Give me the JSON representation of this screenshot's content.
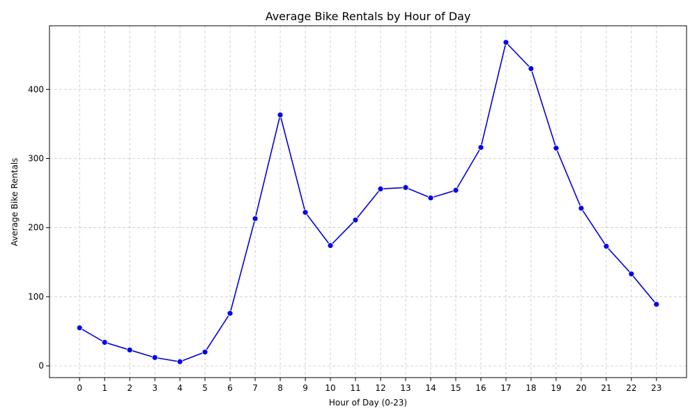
{
  "chart_data": {
    "type": "line",
    "title": "Average Bike Rentals by Hour of Day",
    "xlabel": "Hour of Day (0-23)",
    "ylabel": "Average Bike Rentals",
    "x": [
      0,
      1,
      2,
      3,
      4,
      5,
      6,
      7,
      8,
      9,
      10,
      11,
      12,
      13,
      14,
      15,
      16,
      17,
      18,
      19,
      20,
      21,
      22,
      23
    ],
    "series": [
      {
        "values": [
          55,
          34,
          23,
          12,
          6,
          20,
          76,
          213,
          363,
          222,
          174,
          211,
          256,
          258,
          243,
          254,
          316,
          468,
          430,
          315,
          228,
          173,
          133,
          89
        ],
        "color": "#0000dd",
        "marker": "circle"
      }
    ],
    "xlim": [
      -1.2,
      24.2
    ],
    "ylim": [
      -17,
      492
    ],
    "yticks": [
      0,
      100,
      200,
      300,
      400
    ],
    "grid": true
  }
}
